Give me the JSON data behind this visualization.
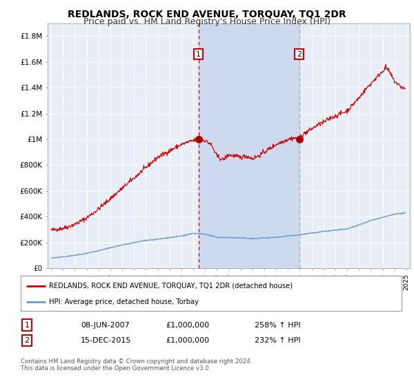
{
  "title": "REDLANDS, ROCK END AVENUE, TORQUAY, TQ1 2DR",
  "subtitle": "Price paid vs. HM Land Registry's House Price Index (HPI)",
  "ylim": [
    0,
    1900000
  ],
  "yticks": [
    0,
    200000,
    400000,
    600000,
    800000,
    1000000,
    1200000,
    1400000,
    1600000,
    1800000
  ],
  "ytick_labels": [
    "£0",
    "£200K",
    "£400K",
    "£600K",
    "£800K",
    "£1M",
    "£1.2M",
    "£1.4M",
    "£1.6M",
    "£1.8M"
  ],
  "xlim_start": 1994.7,
  "xlim_end": 2025.3,
  "background_color": "#ffffff",
  "plot_bg_color": "#e8eef8",
  "grid_color": "#ffffff",
  "red_line_color": "#cc0000",
  "blue_line_color": "#6699cc",
  "marker1_x": 2007.44,
  "marker1_y": 1000000,
  "marker2_x": 2015.96,
  "marker2_y": 1000000,
  "dashed1_color": "#cc0000",
  "dashed2_color": "#aaaaaa",
  "span_color": "#ccd9ee",
  "legend_red_label": "REDLANDS, ROCK END AVENUE, TORQUAY, TQ1 2DR (detached house)",
  "legend_blue_label": "HPI: Average price, detached house, Torbay",
  "table_row1": [
    "1",
    "08-JUN-2007",
    "£1,000,000",
    "258% ↑ HPI"
  ],
  "table_row2": [
    "2",
    "15-DEC-2015",
    "£1,000,000",
    "232% ↑ HPI"
  ],
  "footnote": "Contains HM Land Registry data © Crown copyright and database right 2024.\nThis data is licensed under the Open Government Licence v3.0.",
  "title_fontsize": 10,
  "subtitle_fontsize": 9,
  "red_key_years": [
    1995,
    1996,
    1997,
    1998,
    1999,
    2000,
    2001,
    2002,
    2003,
    2004,
    2005,
    2006,
    2007,
    2007.44,
    2008,
    2008.5,
    2009,
    2009.5,
    2010,
    2010.5,
    2011,
    2011.5,
    2012,
    2012.5,
    2013,
    2013.5,
    2014,
    2014.5,
    2015,
    2015.5,
    2015.96,
    2016,
    2016.5,
    2017,
    2017.5,
    2018,
    2018.5,
    2019,
    2019.5,
    2020,
    2020.5,
    2021,
    2021.5,
    2022,
    2022.5,
    2023,
    2023.3,
    2023.7,
    2024,
    2024.5,
    2024.9
  ],
  "red_key_vals": [
    295000,
    310000,
    340000,
    390000,
    460000,
    540000,
    620000,
    700000,
    780000,
    860000,
    910000,
    960000,
    990000,
    1000000,
    990000,
    960000,
    870000,
    840000,
    880000,
    870000,
    860000,
    870000,
    850000,
    870000,
    900000,
    930000,
    960000,
    980000,
    1000000,
    1010000,
    1000000,
    1020000,
    1050000,
    1080000,
    1110000,
    1130000,
    1160000,
    1180000,
    1200000,
    1220000,
    1270000,
    1320000,
    1380000,
    1430000,
    1480000,
    1530000,
    1560000,
    1500000,
    1450000,
    1410000,
    1390000
  ],
  "blue_key_years": [
    1995,
    1996,
    1997,
    1998,
    1999,
    2000,
    2001,
    2002,
    2003,
    2004,
    2005,
    2006,
    2007,
    2008,
    2009,
    2010,
    2011,
    2012,
    2013,
    2014,
    2015,
    2016,
    2017,
    2018,
    2019,
    2020,
    2021,
    2022,
    2023,
    2024,
    2024.9
  ],
  "blue_key_vals": [
    80000,
    88000,
    100000,
    115000,
    135000,
    160000,
    180000,
    200000,
    215000,
    225000,
    238000,
    250000,
    270000,
    265000,
    240000,
    238000,
    235000,
    230000,
    235000,
    240000,
    250000,
    260000,
    272000,
    285000,
    295000,
    305000,
    335000,
    370000,
    395000,
    420000,
    430000
  ]
}
